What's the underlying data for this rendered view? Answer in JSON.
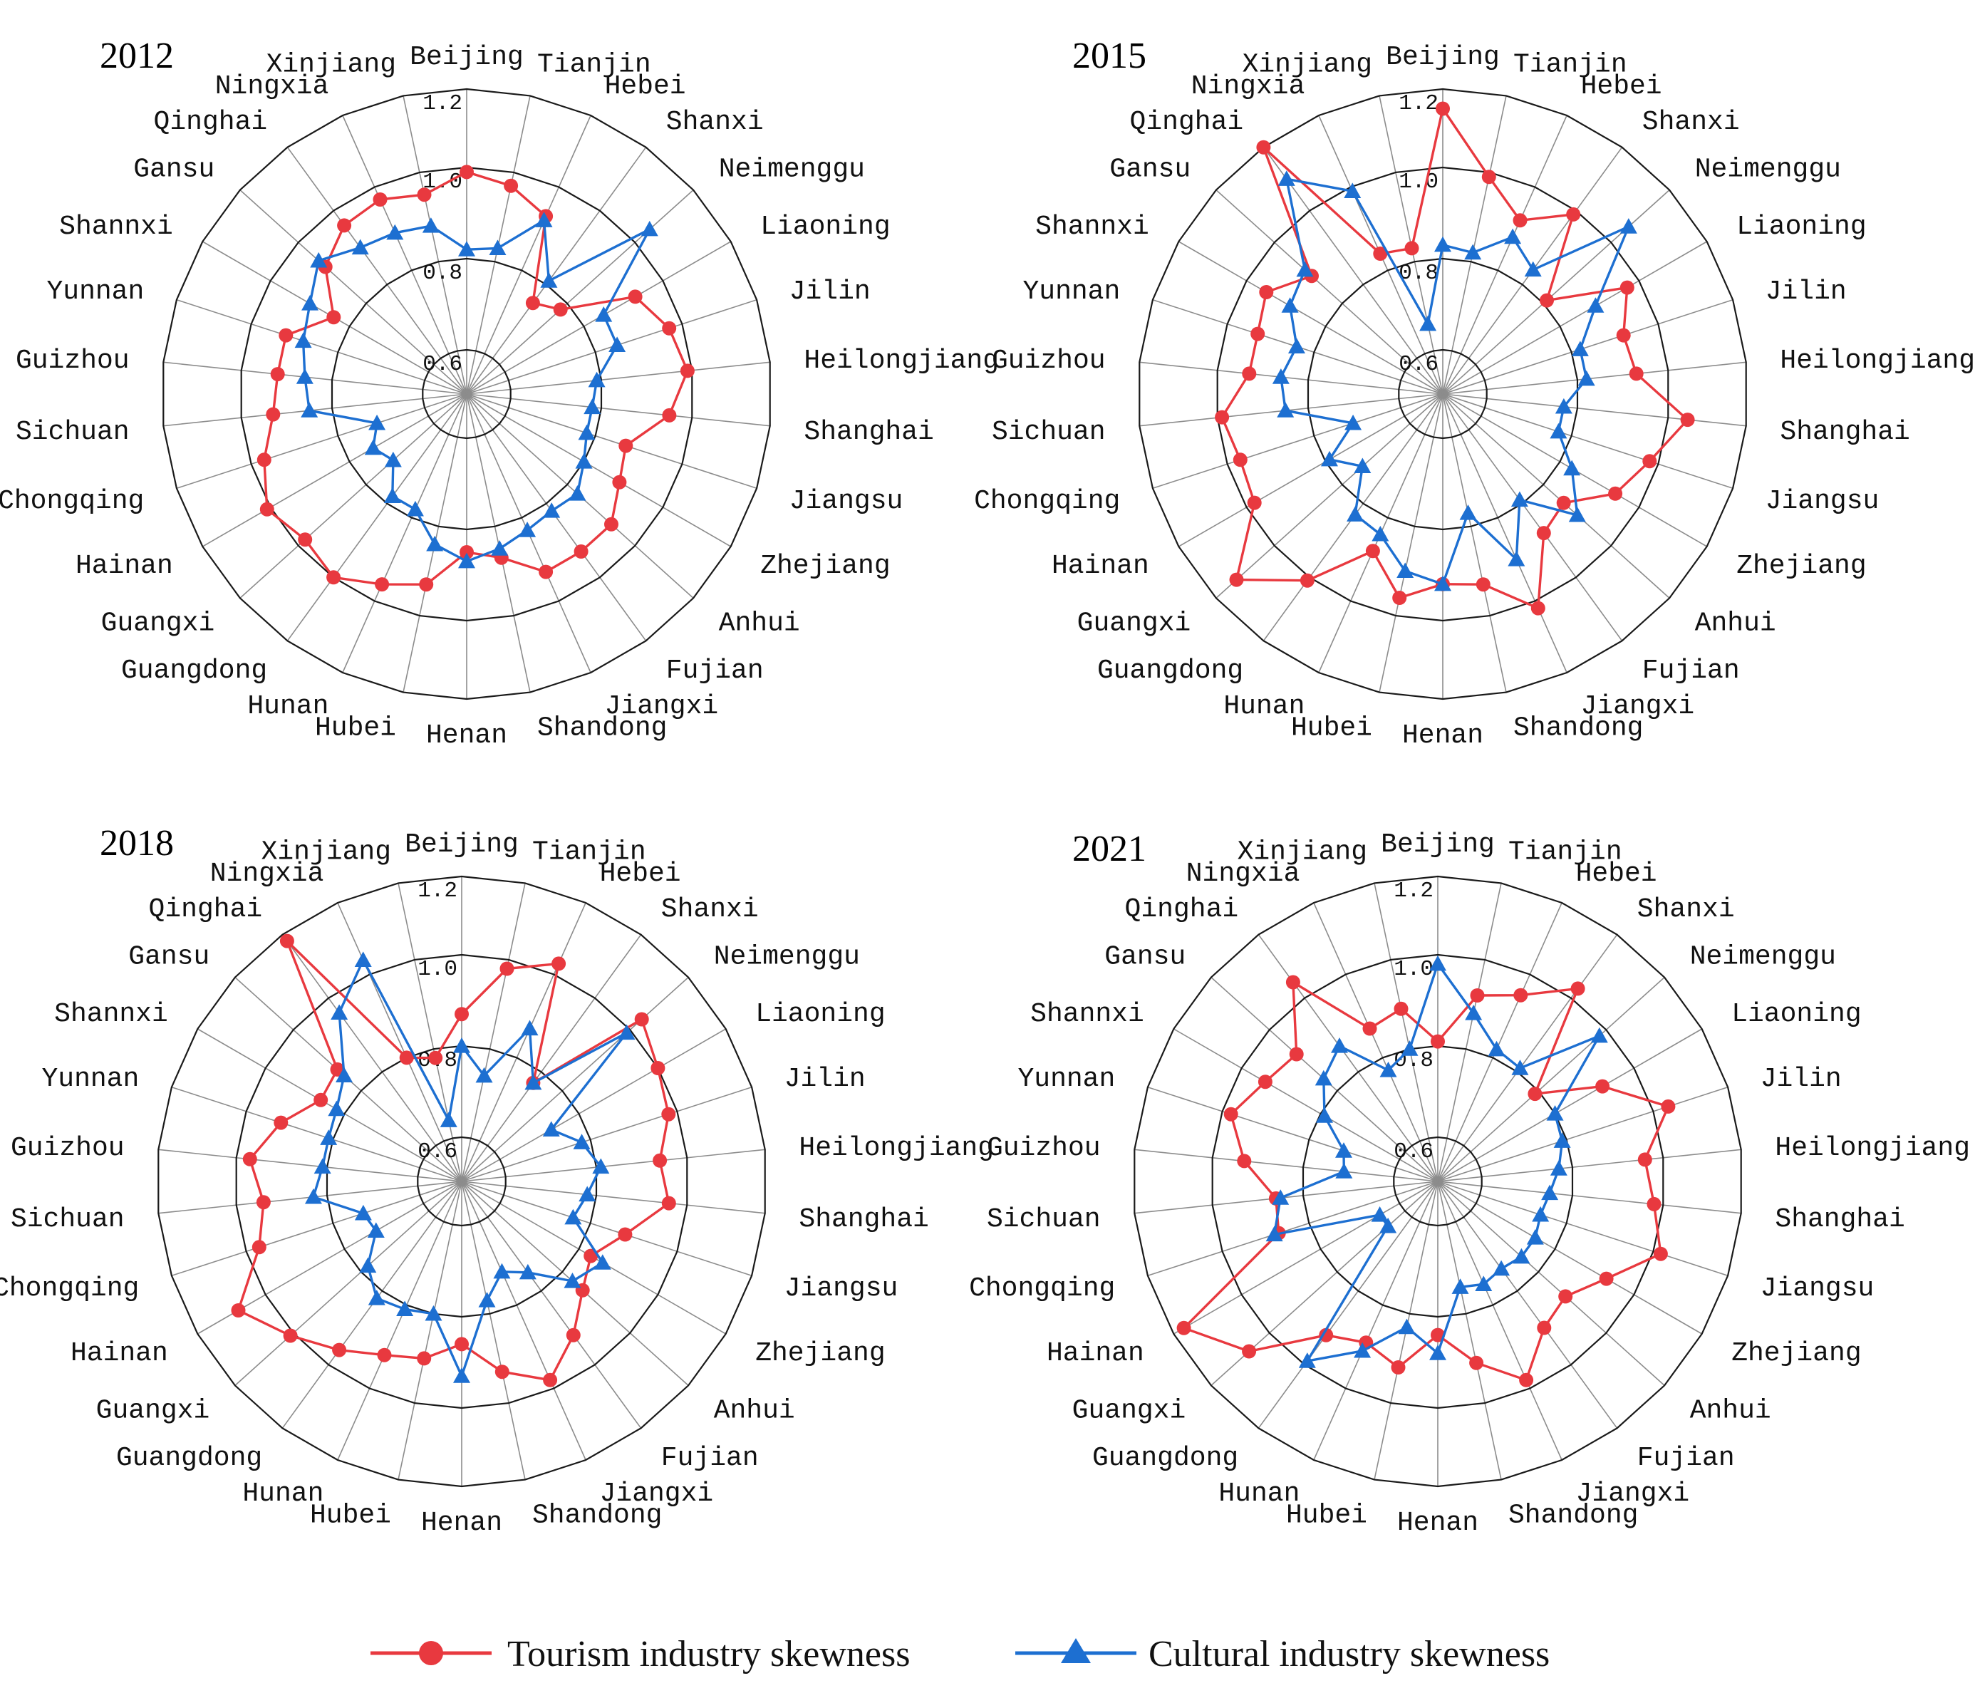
{
  "colors": {
    "tourism": "#e8393f",
    "cultural": "#1d6fd1"
  },
  "legend": {
    "tourism_label": "Tourism industry skewness",
    "cultural_label": "Cultural industry skewness"
  },
  "chart_data": [
    {
      "type": "radar",
      "title": "2012",
      "rlim": [
        0.6,
        1.2
      ],
      "rticks": [
        "0.6",
        "0.8",
        "1.0",
        "1.2"
      ],
      "categories": [
        "Beijing",
        "Tianjin",
        "Hebei",
        "Shanxi",
        "Neimenggu",
        "Liaoning",
        "Jilin",
        "Heilongjiang",
        "Shanghai",
        "Jiangsu",
        "Zhejiang",
        "Anhui",
        "Fujian",
        "Jiangxi",
        "Shandong",
        "Henan",
        "Hubei",
        "Hunan",
        "Guangdong",
        "Guangxi",
        "Hainan",
        "Chongqing",
        "Sichuan",
        "Guizhou",
        "Yunnan",
        "Shannxi",
        "Gansu",
        "Qinghai",
        "Ningxia",
        "Xinjiang"
      ],
      "series": [
        {
          "name": "Tourism industry skewness",
          "values": [
            0.99,
            0.97,
            0.93,
            0.75,
            0.78,
            0.93,
            0.97,
            0.99,
            0.95,
            0.87,
            0.89,
            0.93,
            0.93,
            0.93,
            0.87,
            0.85,
            0.93,
            0.96,
            1.0,
            0.98,
            1.01,
            0.97,
            0.93,
            0.92,
            0.92,
            0.84,
            0.92,
            0.96,
            0.97,
            0.95
          ]
        },
        {
          "name": "Cultural industry skewness",
          "values": [
            0.82,
            0.83,
            0.92,
            0.81,
            1.05,
            0.85,
            0.85,
            0.79,
            0.78,
            0.78,
            0.8,
            0.83,
            0.82,
            0.83,
            0.85,
            0.87,
            0.84,
            0.78,
            0.78,
            0.72,
            0.74,
            0.71,
            0.85,
            0.86,
            0.88,
            0.9,
            0.94,
            0.9,
            0.89,
            0.88
          ]
        }
      ]
    },
    {
      "type": "radar",
      "title": "2015",
      "rlim": [
        0.6,
        1.2
      ],
      "rticks": [
        "0.6",
        "0.8",
        "1.0",
        "1.2"
      ],
      "categories": [
        "Beijing",
        "Tianjin",
        "Hebei",
        "Shanxi",
        "Neimenggu",
        "Liaoning",
        "Jilin",
        "Heilongjiang",
        "Shanghai",
        "Jiangsu",
        "Zhejiang",
        "Anhui",
        "Fujian",
        "Jiangxi",
        "Shandong",
        "Henan",
        "Hubei",
        "Hunan",
        "Guangdong",
        "Guangxi",
        "Hainan",
        "Chongqing",
        "Sichuan",
        "Guizhou",
        "Yunnan",
        "Shannxi",
        "Gansu",
        "Qinghai",
        "Ningxia",
        "Xinjiang"
      ],
      "series": [
        {
          "name": "Tourism industry skewness",
          "values": [
            1.15,
            0.99,
            0.92,
            0.99,
            0.81,
            0.97,
            0.92,
            0.93,
            1.05,
            0.98,
            0.94,
            0.86,
            0.88,
            1.02,
            0.93,
            0.92,
            0.96,
            0.88,
            1.01,
            1.13,
            0.98,
            0.97,
            0.99,
            0.93,
            0.93,
            0.95,
            0.89,
            1.2,
            0.84,
            0.83
          ]
        },
        {
          "name": "Cultural industry skewness",
          "values": [
            0.83,
            0.82,
            0.88,
            0.84,
            1.06,
            0.89,
            0.82,
            0.82,
            0.77,
            0.77,
            0.83,
            0.9,
            0.79,
            0.9,
            0.77,
            0.92,
            0.9,
            0.84,
            0.83,
            0.74,
            0.79,
            0.71,
            0.85,
            0.86,
            0.84,
            0.89,
            0.91,
            1.1,
            0.99,
            0.66
          ]
        }
      ]
    },
    {
      "type": "radar",
      "title": "2018",
      "rlim": [
        0.6,
        1.2
      ],
      "rticks": [
        "0.6",
        "0.8",
        "1.0",
        "1.2"
      ],
      "categories": [
        "Beijing",
        "Tianjin",
        "Hebei",
        "Shanxi",
        "Neimenggu",
        "Liaoning",
        "Jilin",
        "Heilongjiang",
        "Shanghai",
        "Jiangsu",
        "Zhejiang",
        "Anhui",
        "Fujian",
        "Jiangxi",
        "Shandong",
        "Henan",
        "Hubei",
        "Hunan",
        "Guangdong",
        "Guangxi",
        "Hainan",
        "Chongqing",
        "Sichuan",
        "Guizhou",
        "Yunnan",
        "Shannxi",
        "Gansu",
        "Qinghai",
        "Ningxia",
        "Xinjiang"
      ],
      "series": [
        {
          "name": "Tourism industry skewness",
          "values": [
            0.87,
            0.98,
            1.03,
            0.77,
            1.04,
            1.0,
            0.98,
            0.94,
            0.96,
            0.88,
            0.83,
            0.86,
            0.92,
            0.98,
            0.93,
            0.86,
            0.9,
            0.92,
            0.96,
            1.01,
            1.08,
            0.97,
            0.94,
            0.97,
            0.92,
            0.86,
            0.87,
            1.18,
            0.8,
            0.78
          ]
        },
        {
          "name": "Cultural industry skewness",
          "values": [
            0.8,
            0.74,
            0.87,
            0.77,
            0.99,
            0.73,
            0.78,
            0.81,
            0.78,
            0.76,
            0.86,
            0.83,
            0.75,
            0.72,
            0.77,
            0.93,
            0.8,
            0.81,
            0.82,
            0.78,
            0.72,
            0.73,
            0.83,
            0.81,
            0.81,
            0.82,
            0.85,
            0.96,
            1.04,
            0.64
          ]
        }
      ]
    },
    {
      "type": "radar",
      "title": "2021",
      "rlim": [
        0.6,
        1.2
      ],
      "rticks": [
        "0.6",
        "0.8",
        "1.0",
        "1.2"
      ],
      "categories": [
        "Beijing",
        "Tianjin",
        "Hebei",
        "Shanxi",
        "Neimenggu",
        "Liaoning",
        "Jilin",
        "Heilongjiang",
        "Shanghai",
        "Jiangsu",
        "Zhejiang",
        "Anhui",
        "Fujian",
        "Jiangxi",
        "Shandong",
        "Henan",
        "Hubei",
        "Hunan",
        "Guangdong",
        "Guangxi",
        "Hainan",
        "Chongqing",
        "Sichuan",
        "Guizhou",
        "Yunnan",
        "Shannxi",
        "Gansu",
        "Qinghai",
        "Ningxia",
        "Xinjiang"
      ],
      "series": [
        {
          "name": "Tourism industry skewness",
          "values": [
            0.81,
            0.92,
            0.95,
            1.03,
            0.79,
            0.92,
            1.04,
            0.96,
            0.98,
            1.02,
            0.93,
            0.88,
            0.9,
            0.98,
            0.91,
            0.84,
            0.92,
            0.89,
            0.92,
            1.07,
            1.17,
            0.87,
            0.86,
            0.93,
            0.98,
            0.94,
            0.92,
            1.05,
            0.87,
            0.89
          ]
        },
        {
          "name": "Cultural industry skewness",
          "values": [
            0.98,
            0.88,
            0.82,
            0.81,
            0.98,
            0.8,
            0.79,
            0.77,
            0.75,
            0.74,
            0.75,
            0.75,
            0.74,
            0.75,
            0.74,
            0.88,
            0.83,
            0.91,
            0.99,
            0.65,
            0.65,
            0.88,
            0.85,
            0.71,
            0.72,
            0.79,
            0.84,
            0.87,
            0.77,
            0.8
          ]
        }
      ]
    }
  ]
}
